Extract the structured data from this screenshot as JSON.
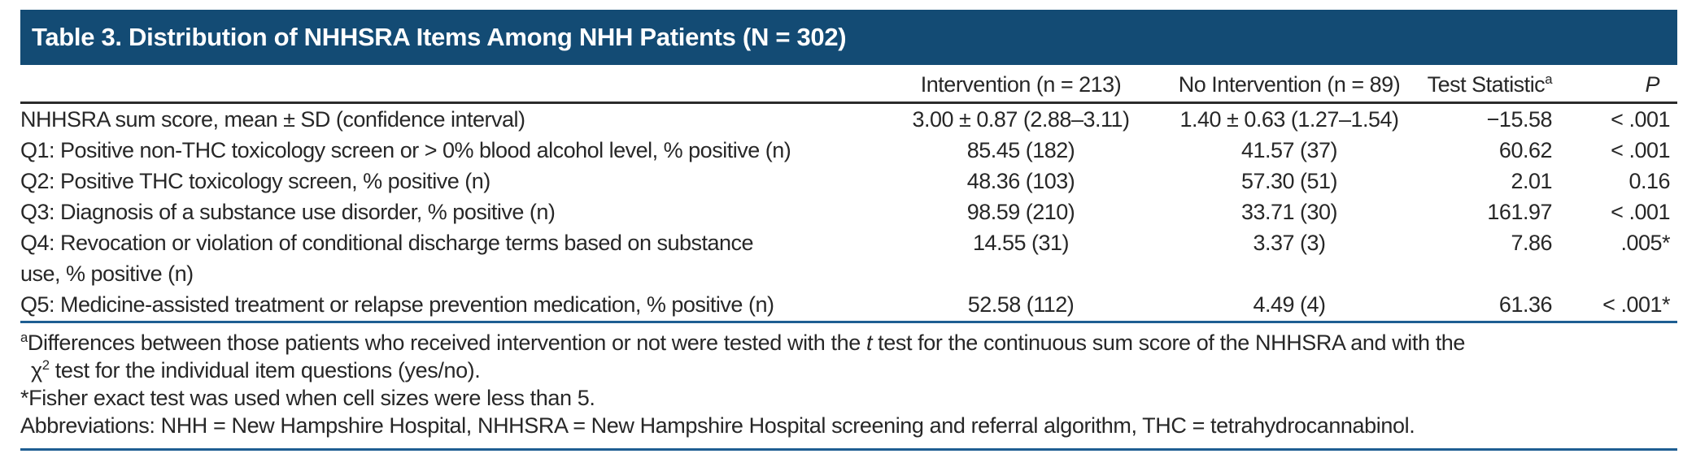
{
  "colors": {
    "header_band": "#134B74",
    "rule_blue": "#1E5E92",
    "rule_dark": "#2B2B2B",
    "text": "#272727",
    "title_text": "#FFFFFF"
  },
  "title": "Table 3. Distribution of NHHSRA Items Among NHH Patients (N = 302)",
  "header": {
    "intervention": "Intervention (n = 213)",
    "no_intervention": "No Intervention (n = 89)",
    "test_statistic": "Test Statistic",
    "test_statistic_sup": "a",
    "p": "P"
  },
  "rows": [
    {
      "label": "NHHSRA sum score, mean ± SD (confidence interval)",
      "intervention": "3.00 ± 0.87 (2.88–3.11)",
      "no_intervention": "1.40 ± 0.63 (1.27–1.54)",
      "test_statistic": "−15.58",
      "p": "< .001"
    },
    {
      "label": "Q1: Positive non-THC toxicology screen or > 0% blood alcohol level, % positive (n)",
      "intervention": "85.45 (182)",
      "no_intervention": "41.57 (37)",
      "test_statistic": "60.62",
      "p": "< .001"
    },
    {
      "label": "Q2: Positive THC toxicology screen, % positive (n)",
      "intervention": "48.36 (103)",
      "no_intervention": "57.30 (51)",
      "test_statistic": "2.01",
      "p": "0.16"
    },
    {
      "label": "Q3: Diagnosis of a substance use disorder, % positive (n)",
      "intervention": "98.59 (210)",
      "no_intervention": "33.71 (30)",
      "test_statistic": "161.97",
      "p": "< .001"
    },
    {
      "label": "Q4: Revocation or violation of conditional discharge terms based on substance",
      "label2": "use, % positive (n)",
      "intervention": "14.55 (31)",
      "no_intervention": "3.37 (3)",
      "test_statistic": "7.86",
      "p": ".005*"
    },
    {
      "label": "Q5: Medicine-assisted treatment or relapse prevention medication, % positive (n)",
      "intervention": "52.58 (112)",
      "no_intervention": "4.49 (4)",
      "test_statistic": "61.36",
      "p": "< .001*"
    }
  ],
  "footnotes": {
    "a_sup": "a",
    "a_before_italic": "Differences between those patients who received intervention or not were tested with the ",
    "a_italic": "t",
    "a_after_italic": " test for the continuous sum score of the NHHSRA and with the",
    "a_line2_chi": "χ",
    "a_line2_sup": "2",
    "a_line2_rest": " test for the individual item questions (yes/no).",
    "star": "*Fisher exact test was used when cell sizes were less than 5.",
    "abbreviations": "Abbreviations: NHH = New Hampshire Hospital, NHHSRA = New Hampshire Hospital screening and referral algorithm, THC = tetrahydrocannabinol."
  }
}
